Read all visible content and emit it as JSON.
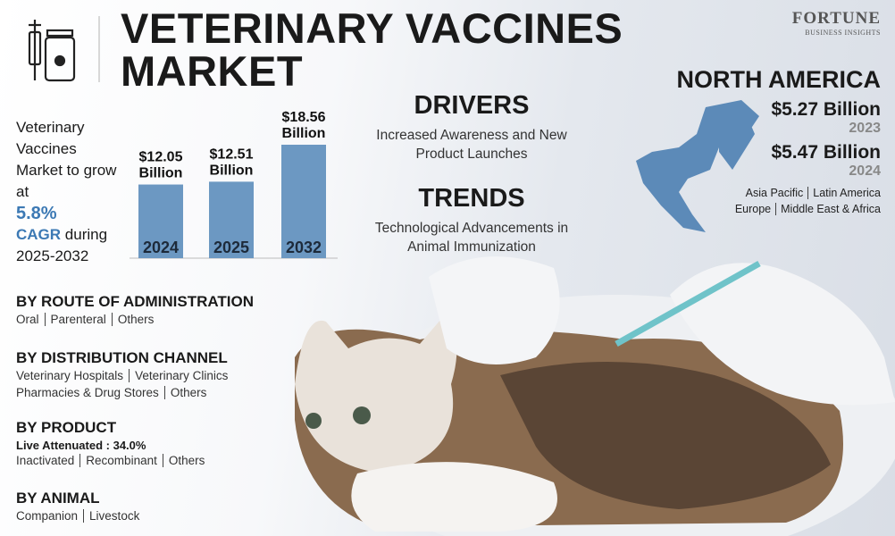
{
  "header": {
    "title": "VETERINARY VACCINES MARKET",
    "brand": "FORTUNE",
    "brand_sub": "BUSINESS INSIGHTS"
  },
  "growth": {
    "intro": "Veterinary Vaccines Market to grow at",
    "rate": "5.8%",
    "cagr": "CAGR",
    "period": "during 2025-2032"
  },
  "chart_data": {
    "type": "bar",
    "categories": [
      "2024",
      "2025",
      "2032"
    ],
    "values": [
      12.05,
      12.51,
      18.56
    ],
    "value_labels": [
      "$12.05 Billion",
      "$12.51 Billion",
      "$18.56 Billion"
    ],
    "color": "#6c98c2"
  },
  "drivers": {
    "title": "DRIVERS",
    "text": "Increased Awareness and New Product Launches"
  },
  "trends": {
    "title": "TRENDS",
    "text": "Technological Advancements in Animal Immunization"
  },
  "region": {
    "title": "NORTH AMERICA",
    "stats": [
      {
        "value": "$5.27 Billion",
        "year": "2023"
      },
      {
        "value": "$5.47 Billion",
        "year": "2024"
      }
    ],
    "others": [
      [
        "Asia Pacific",
        "Latin America"
      ],
      [
        "Europe",
        "Middle East & Africa"
      ]
    ]
  },
  "segments": [
    {
      "title": "BY ROUTE OF ADMINISTRATION",
      "lines": [
        [
          "Oral",
          "Parenteral",
          "Others"
        ]
      ]
    },
    {
      "title": "BY DISTRIBUTION CHANNEL",
      "lines": [
        [
          "Veterinary Hospitals",
          "Veterinary Clinics"
        ],
        [
          "Pharmacies & Drug Stores",
          "Others"
        ]
      ]
    },
    {
      "title": "BY PRODUCT",
      "highlight": "Live Attenuated : 34.0%",
      "lines": [
        [
          "Inactivated",
          "Recombinant",
          "Others"
        ]
      ]
    },
    {
      "title": "BY ANIMAL",
      "lines": [
        [
          "Companion",
          "Livestock"
        ]
      ]
    }
  ]
}
